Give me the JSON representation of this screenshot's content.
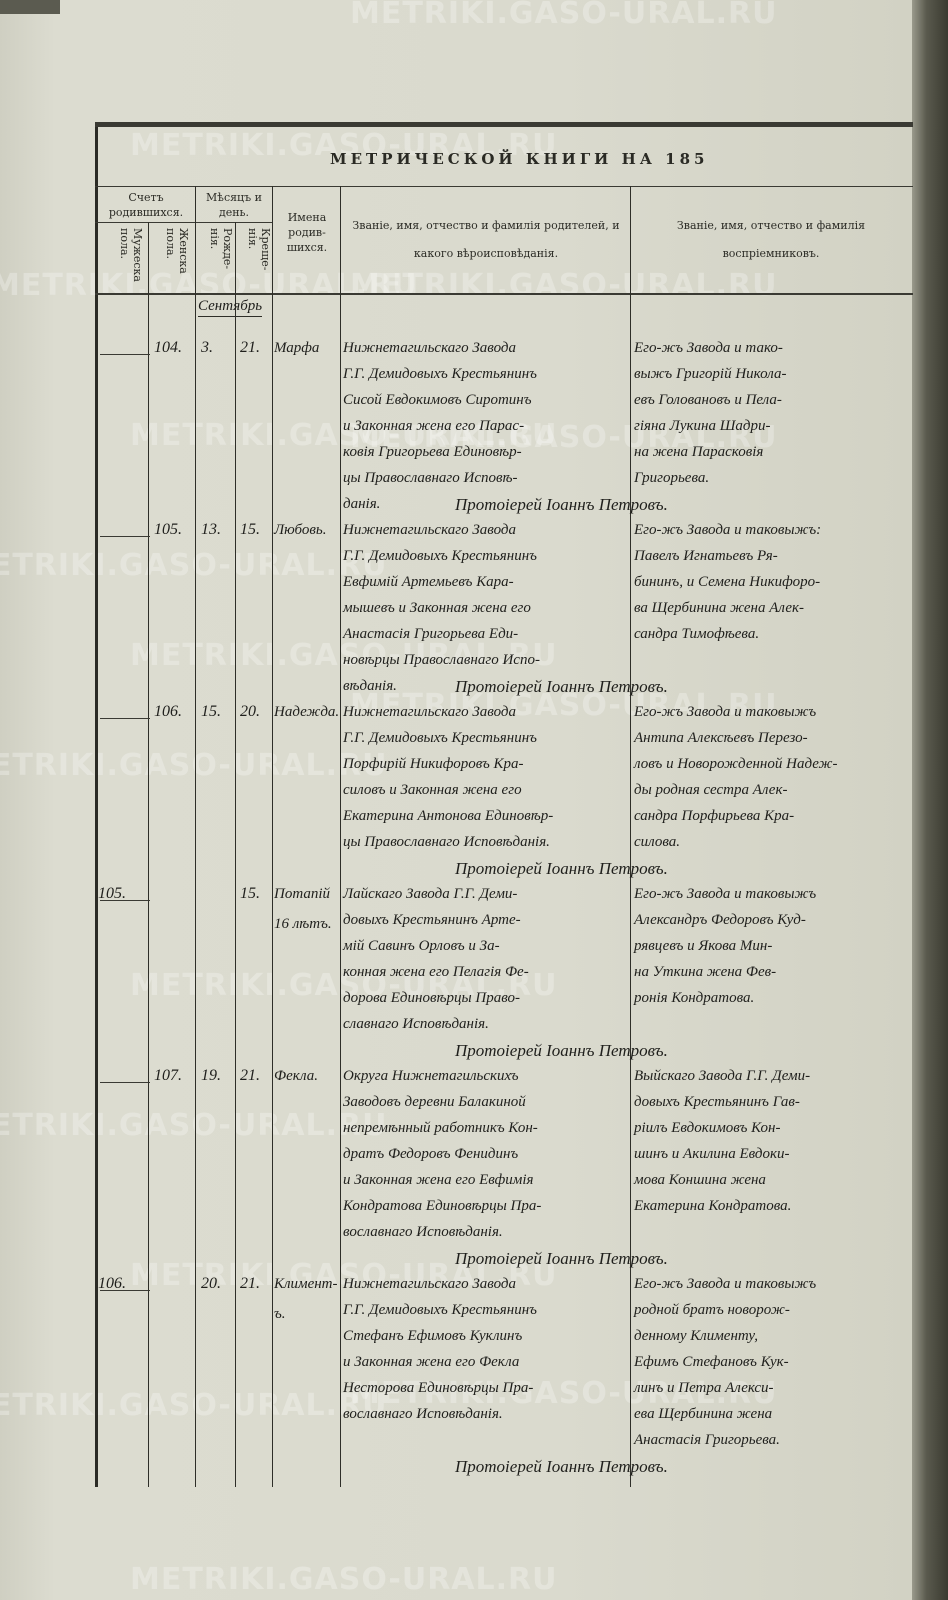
{
  "watermark": "METRIKI.GASO-URAL.RU",
  "title": "МЕТРИЧЕСКОЙ КНИГИ НА 185",
  "headers": {
    "count_born": "Счетъ родившихся.",
    "male": "Мужеска пола.",
    "female": "Женска пола.",
    "month_day": "Мѣсяцъ и день.",
    "birth": "Рожде-нія.",
    "baptism": "Креще-нія.",
    "names": "Имена родив-шихся.",
    "parents": "Званіе, имя, отчество и фамилія родителей, и какого вѣроисповѣданія.",
    "godparents": "Званіе, имя, отчество и фамилія воспріемниковъ."
  },
  "month": "Сентябрь",
  "entries": [
    {
      "male": "",
      "female": "104.",
      "birth": "3.",
      "baptism": "21.",
      "name": [
        "Марфа"
      ],
      "parents": [
        "Нижнетагильскаго Завода",
        "Г.Г. Демидовыхъ Крестьянинъ",
        "Сисой Евдокимовъ Сиротинъ",
        "и Законная жена его Парас-",
        "ковія Григорьева Единовѣр-",
        "цы Православнаго Исповѣ-",
        "данія."
      ],
      "godparents": [
        "Его-жъ Завода и тако-",
        "выжъ Григорій Никола-",
        "евъ Головановъ и Пела-",
        "гіяна Лукина Шадри-",
        "на жена Парасковія",
        "Григорьева."
      ],
      "signature": "Протоіерей Іоаннъ Петровъ."
    },
    {
      "male": "",
      "female": "105.",
      "birth": "13.",
      "baptism": "15.",
      "name": [
        "Любовь."
      ],
      "parents": [
        "Нижнетагильскаго Завода",
        "Г.Г. Демидовыхъ Крестьянинъ",
        "Евфимій Артемьевъ Кара-",
        "мышевъ и Законная жена его",
        "Анастасія Григорьева Еди-",
        "новѣрцы Православнаго Испо-",
        "вѣданія."
      ],
      "godparents": [
        "Его-жъ Завода и таковыжъ:",
        "Павелъ Игнатьевъ Ря-",
        "бининъ, и Семена Никифоро-",
        "ва Щербинина жена Алек-",
        "сандра Тимофѣева."
      ],
      "signature": "Протоіерей Іоаннъ Петровъ."
    },
    {
      "male": "",
      "female": "106.",
      "birth": "15.",
      "baptism": "20.",
      "name": [
        "Надежда."
      ],
      "parents": [
        "Нижнетагильскаго Завода",
        "Г.Г. Демидовыхъ Крестьянинъ",
        "Порфирій Никифоровъ Кра-",
        "силовъ и Законная жена его",
        "Екатерина Антонова Единовѣр-",
        "цы Православнаго Исповѣданія."
      ],
      "godparents": [
        "Его-жъ Завода и таковыжъ",
        "Антипа Алексѣевъ Перезо-",
        "ловъ и Новорожденной Надеж-",
        "ды родная сестра Алек-",
        "сандра Порфирьева Кра-",
        "силова."
      ],
      "signature": "Протоіерей Іоаннъ Петровъ."
    },
    {
      "male": "105.",
      "female": "",
      "birth": "",
      "baptism": "15.",
      "name": [
        "Потапій",
        "16 лѣтъ."
      ],
      "parents": [
        "Лайскаго Завода Г.Г. Деми-",
        "довыхъ Крестьянинъ Арте-",
        "мій Савинъ Орловъ и За-",
        "конная жена его Пелагія Фе-",
        "дорова Единовѣрцы Право-",
        "славнаго Исповѣданія."
      ],
      "godparents": [
        "Его-жъ Завода и таковыжъ",
        "Александръ Федоровъ Куд-",
        "рявцевъ и Якова Мин-",
        "на Уткина жена Фев-",
        "ронія Кондратова."
      ],
      "signature": "Протоіерей Іоаннъ Петровъ."
    },
    {
      "male": "",
      "female": "107.",
      "birth": "19.",
      "baptism": "21.",
      "name": [
        "Фекла."
      ],
      "parents": [
        "Округа Нижнетагильскихъ",
        "Заводовъ деревни Балакиной",
        "непремѣнный работникъ Кон-",
        "дратъ Федоровъ Фенидинъ",
        "и Законная жена его Евфимія",
        "Кондратова Единовѣрцы Пра-",
        "вославнаго Исповѣданія."
      ],
      "godparents": [
        "Выйскаго Завода Г.Г. Деми-",
        "довыхъ Крестьянинъ Гав-",
        "ріилъ Евдокимовъ Кон-",
        "шинъ и Акилина Евдоки-",
        "мова Коншина жена",
        "Екатерина Кондратова."
      ],
      "signature": "Протоіерей Іоаннъ Петровъ."
    },
    {
      "male": "106.",
      "female": "",
      "birth": "20.",
      "baptism": "21.",
      "name": [
        "Климент-",
        "ъ."
      ],
      "parents": [
        "Нижнетагильскаго Завода",
        "Г.Г. Демидовыхъ Крестьянинъ",
        "Стефанъ Ефимовъ Куклинъ",
        "и Законная жена его Фекла",
        "Несторова Единовѣрцы Пра-",
        "вославнаго Исповѣданія."
      ],
      "godparents": [
        "Его-жъ Завода и таковыжъ",
        "родной братъ новорож-",
        "денному Клименту,",
        "Ефимъ Стефановъ Кук-",
        "линъ и Петра Алекси-",
        "ева Щербинина жена",
        "Анастасія Григорьева."
      ],
      "signature": "Протоіерей Іоаннъ Петровъ."
    }
  ]
}
